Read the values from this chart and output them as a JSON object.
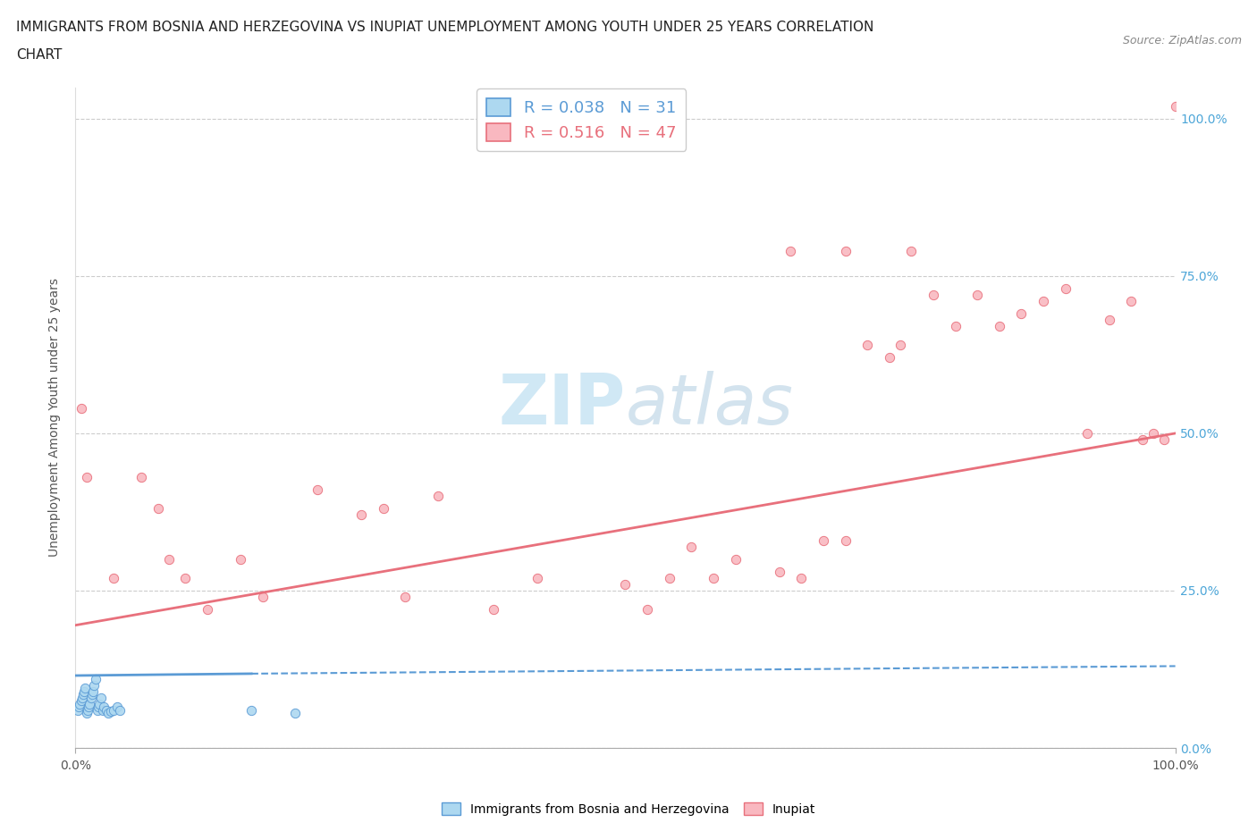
{
  "title_line1": "IMMIGRANTS FROM BOSNIA AND HERZEGOVINA VS INUPIAT UNEMPLOYMENT AMONG YOUTH UNDER 25 YEARS CORRELATION",
  "title_line2": "CHART",
  "source_text": "Source: ZipAtlas.com",
  "ylabel": "Unemployment Among Youth under 25 years",
  "xlim": [
    0.0,
    1.0
  ],
  "ylim": [
    0.0,
    1.05
  ],
  "y_tick_values": [
    0.0,
    0.25,
    0.5,
    0.75,
    1.0
  ],
  "legend_label1": "Immigrants from Bosnia and Herzegovina",
  "legend_label2": "Inupiat",
  "r1": "0.038",
  "n1": "31",
  "r2": "0.516",
  "n2": "47",
  "color1": "#add8f0",
  "color2": "#f9b8c0",
  "line1_color": "#5b9bd5",
  "line2_color": "#e8707c",
  "watermark_color": "#d0e8f5",
  "bosnia_x": [
    0.002,
    0.003,
    0.004,
    0.005,
    0.006,
    0.007,
    0.008,
    0.009,
    0.01,
    0.011,
    0.012,
    0.013,
    0.014,
    0.015,
    0.016,
    0.017,
    0.018,
    0.02,
    0.021,
    0.022,
    0.023,
    0.025,
    0.026,
    0.028,
    0.03,
    0.032,
    0.035,
    0.038,
    0.04,
    0.16,
    0.2
  ],
  "bosnia_y": [
    0.06,
    0.065,
    0.07,
    0.075,
    0.08,
    0.085,
    0.09,
    0.095,
    0.055,
    0.06,
    0.065,
    0.07,
    0.08,
    0.085,
    0.09,
    0.1,
    0.11,
    0.06,
    0.065,
    0.07,
    0.08,
    0.06,
    0.065,
    0.06,
    0.055,
    0.058,
    0.06,
    0.065,
    0.06,
    0.06,
    0.055
  ],
  "inupiat_x": [
    0.005,
    0.01,
    0.035,
    0.06,
    0.075,
    0.085,
    0.1,
    0.12,
    0.15,
    0.17,
    0.22,
    0.26,
    0.28,
    0.3,
    0.33,
    0.38,
    0.42,
    0.5,
    0.52,
    0.54,
    0.56,
    0.58,
    0.6,
    0.64,
    0.66,
    0.68,
    0.7,
    0.72,
    0.74,
    0.76,
    0.78,
    0.8,
    0.82,
    0.84,
    0.86,
    0.88,
    0.9,
    0.92,
    0.94,
    0.96,
    0.97,
    0.98,
    0.99,
    1.0,
    0.65,
    0.7,
    0.75
  ],
  "inupiat_y": [
    0.54,
    0.43,
    0.27,
    0.43,
    0.38,
    0.3,
    0.27,
    0.22,
    0.3,
    0.24,
    0.41,
    0.37,
    0.38,
    0.24,
    0.4,
    0.22,
    0.27,
    0.26,
    0.22,
    0.27,
    0.32,
    0.27,
    0.3,
    0.28,
    0.27,
    0.33,
    0.33,
    0.64,
    0.62,
    0.79,
    0.72,
    0.67,
    0.72,
    0.67,
    0.69,
    0.71,
    0.73,
    0.5,
    0.68,
    0.71,
    0.49,
    0.5,
    0.49,
    1.02,
    0.79,
    0.79,
    0.64
  ],
  "bosnia_trendline": [
    0.0,
    1.0,
    0.115,
    0.125
  ],
  "inupiat_trendline": [
    0.0,
    1.0,
    0.195,
    0.5
  ]
}
